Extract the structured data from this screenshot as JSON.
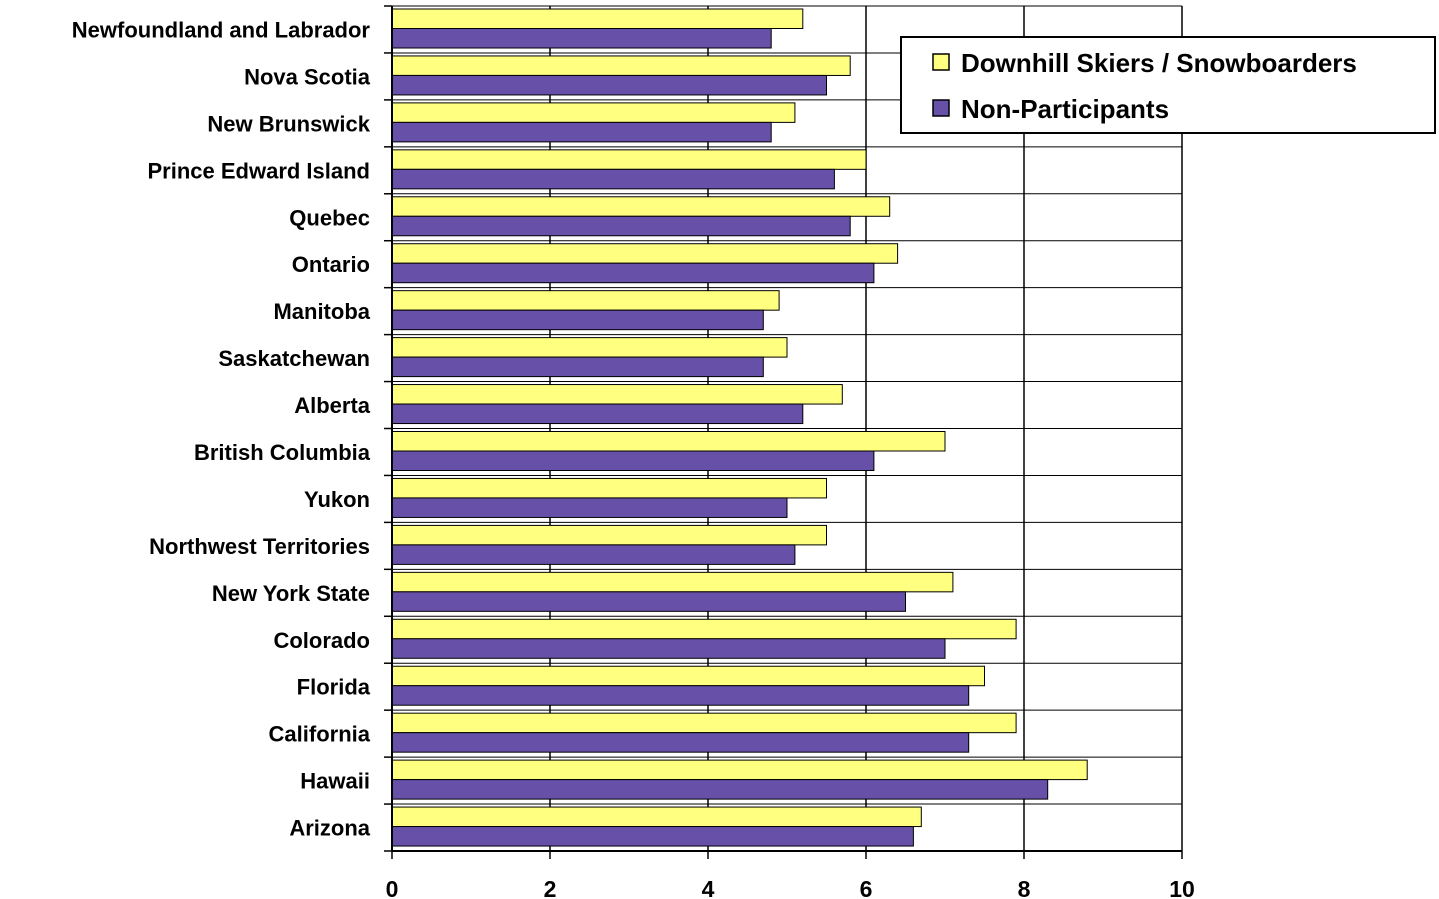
{
  "chart_data": {
    "type": "bar",
    "orientation": "horizontal",
    "categories": [
      "Newfoundland and Labrador",
      "Nova Scotia",
      "New Brunswick",
      "Prince Edward Island",
      "Quebec",
      "Ontario",
      "Manitoba",
      "Saskatchewan",
      "Alberta",
      "British Columbia",
      "Yukon",
      "Northwest Territories",
      "New York State",
      "Colorado",
      "Florida",
      "California",
      "Hawaii",
      "Arizona"
    ],
    "series": [
      {
        "name": "Downhill Skiers / Snowboarders",
        "color": "#ffff80",
        "values": [
          5.2,
          5.8,
          5.1,
          6.0,
          6.3,
          6.4,
          4.9,
          5.0,
          5.7,
          7.0,
          5.5,
          5.5,
          7.1,
          7.9,
          7.5,
          7.9,
          8.8,
          6.7
        ]
      },
      {
        "name": "Non-Participants",
        "color": "#6650a8",
        "values": [
          4.8,
          5.5,
          4.8,
          5.6,
          5.8,
          6.1,
          4.7,
          4.7,
          5.2,
          6.1,
          5.0,
          5.1,
          6.5,
          7.0,
          7.3,
          7.3,
          8.3,
          6.6
        ]
      }
    ],
    "x_ticks": [
      "0",
      "2",
      "4",
      "6",
      "8",
      "10"
    ],
    "xlim": [
      0,
      10
    ],
    "grid": true,
    "legend_position": "top-right"
  }
}
